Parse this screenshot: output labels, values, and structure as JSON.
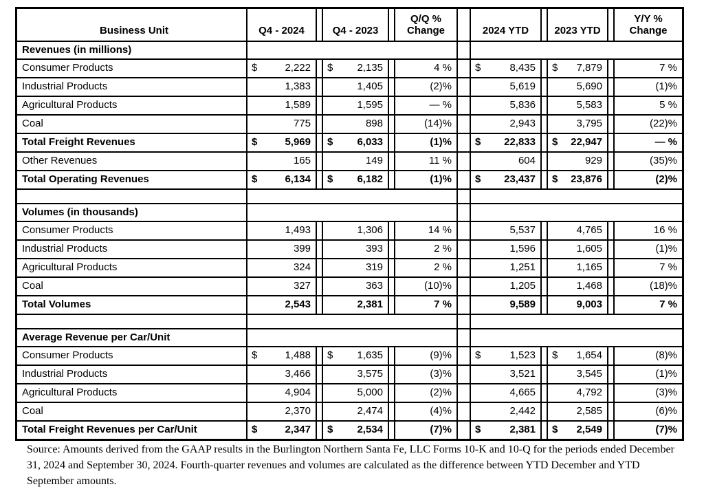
{
  "table": {
    "columns": [
      "Business Unit",
      "Q4 - 2024",
      "Q4 - 2023",
      "Q/Q %\nChange",
      "2024 YTD",
      "2023 YTD",
      "Y/Y %\nChange"
    ],
    "column_keys": [
      "q4-2024",
      "q4-2023",
      "qq-change",
      "ytd-2024",
      "ytd-2023",
      "yy-change"
    ],
    "sections": [
      {
        "title": "Revenues (in millions)",
        "rows": [
          {
            "label": "Consumer Products",
            "bold": false,
            "cells": [
              {
                "d": "$",
                "v": "2,222"
              },
              {
                "d": "$",
                "v": "2,135"
              },
              {
                "v": "4 %"
              },
              {
                "d": "$",
                "v": "8,435"
              },
              {
                "d": "$",
                "v": "7,879"
              },
              {
                "v": "7 %"
              }
            ]
          },
          {
            "label": "Industrial Products",
            "bold": false,
            "cells": [
              {
                "v": "1,383"
              },
              {
                "v": "1,405"
              },
              {
                "v": "(2)%"
              },
              {
                "v": "5,619"
              },
              {
                "v": "5,690"
              },
              {
                "v": "(1)%"
              }
            ]
          },
          {
            "label": "Agricultural Products",
            "bold": false,
            "cells": [
              {
                "v": "1,589"
              },
              {
                "v": "1,595"
              },
              {
                "v": "— %"
              },
              {
                "v": "5,836"
              },
              {
                "v": "5,583"
              },
              {
                "v": "5 %"
              }
            ]
          },
          {
            "label": "Coal",
            "bold": false,
            "cells": [
              {
                "v": "775"
              },
              {
                "v": "898"
              },
              {
                "v": "(14)%"
              },
              {
                "v": "2,943"
              },
              {
                "v": "3,795"
              },
              {
                "v": "(22)%"
              }
            ]
          },
          {
            "label": "Total Freight Revenues",
            "bold": true,
            "cells": [
              {
                "d": "$",
                "v": "5,969"
              },
              {
                "d": "$",
                "v": "6,033"
              },
              {
                "v": "(1)%"
              },
              {
                "d": "$",
                "v": "22,833"
              },
              {
                "d": "$",
                "v": "22,947"
              },
              {
                "v": "— %"
              }
            ]
          },
          {
            "label": "Other Revenues",
            "bold": false,
            "cells": [
              {
                "v": "165"
              },
              {
                "v": "149"
              },
              {
                "v": "11 %"
              },
              {
                "v": "604"
              },
              {
                "v": "929"
              },
              {
                "v": "(35)%"
              }
            ]
          },
          {
            "label": "Total Operating Revenues",
            "bold": true,
            "cells": [
              {
                "d": "$",
                "v": "6,134"
              },
              {
                "d": "$",
                "v": "6,182"
              },
              {
                "v": "(1)%"
              },
              {
                "d": "$",
                "v": "23,437"
              },
              {
                "d": "$",
                "v": "23,876"
              },
              {
                "v": "(2)%"
              }
            ]
          }
        ]
      },
      {
        "title": "Volumes (in thousands)",
        "rows": [
          {
            "label": "Consumer Products",
            "bold": false,
            "cells": [
              {
                "v": "1,493"
              },
              {
                "v": "1,306"
              },
              {
                "v": "14 %"
              },
              {
                "v": "5,537"
              },
              {
                "v": "4,765"
              },
              {
                "v": "16 %"
              }
            ]
          },
          {
            "label": "Industrial Products",
            "bold": false,
            "cells": [
              {
                "v": "399"
              },
              {
                "v": "393"
              },
              {
                "v": "2 %"
              },
              {
                "v": "1,596"
              },
              {
                "v": "1,605"
              },
              {
                "v": "(1)%"
              }
            ]
          },
          {
            "label": "Agricultural Products",
            "bold": false,
            "cells": [
              {
                "v": "324"
              },
              {
                "v": "319"
              },
              {
                "v": "2 %"
              },
              {
                "v": "1,251"
              },
              {
                "v": "1,165"
              },
              {
                "v": "7 %"
              }
            ]
          },
          {
            "label": "Coal",
            "bold": false,
            "cells": [
              {
                "v": "327"
              },
              {
                "v": "363"
              },
              {
                "v": "(10)%"
              },
              {
                "v": "1,205"
              },
              {
                "v": "1,468"
              },
              {
                "v": "(18)%"
              }
            ]
          },
          {
            "label": "Total Volumes",
            "bold": true,
            "cells": [
              {
                "v": "2,543"
              },
              {
                "v": "2,381"
              },
              {
                "v": "7 %"
              },
              {
                "v": "9,589"
              },
              {
                "v": "9,003"
              },
              {
                "v": "7 %"
              }
            ]
          }
        ]
      },
      {
        "title": "Average Revenue per Car/Unit",
        "rows": [
          {
            "label": "Consumer Products",
            "bold": false,
            "cells": [
              {
                "d": "$",
                "v": "1,488"
              },
              {
                "d": "$",
                "v": "1,635"
              },
              {
                "v": "(9)%"
              },
              {
                "d": "$",
                "v": "1,523"
              },
              {
                "d": "$",
                "v": "1,654"
              },
              {
                "v": "(8)%"
              }
            ]
          },
          {
            "label": "Industrial Products",
            "bold": false,
            "cells": [
              {
                "v": "3,466"
              },
              {
                "v": "3,575"
              },
              {
                "v": "(3)%"
              },
              {
                "v": "3,521"
              },
              {
                "v": "3,545"
              },
              {
                "v": "(1)%"
              }
            ]
          },
          {
            "label": "Agricultural Products",
            "bold": false,
            "cells": [
              {
                "v": "4,904"
              },
              {
                "v": "5,000"
              },
              {
                "v": "(2)%"
              },
              {
                "v": "4,665"
              },
              {
                "v": "4,792"
              },
              {
                "v": "(3)%"
              }
            ]
          },
          {
            "label": "Coal",
            "bold": false,
            "cells": [
              {
                "v": "2,370"
              },
              {
                "v": "2,474"
              },
              {
                "v": "(4)%"
              },
              {
                "v": "2,442"
              },
              {
                "v": "2,585"
              },
              {
                "v": "(6)%"
              }
            ]
          },
          {
            "label": "Total Freight Revenues per Car/Unit",
            "bold": true,
            "cells": [
              {
                "d": "$",
                "v": "2,347"
              },
              {
                "d": "$",
                "v": "2,534"
              },
              {
                "v": "(7)%"
              },
              {
                "d": "$",
                "v": "2,381"
              },
              {
                "d": "$",
                "v": "2,549"
              },
              {
                "v": "(7)%"
              }
            ]
          }
        ]
      }
    ]
  },
  "footer": {
    "source_text": "Source: Amounts derived from the GAAP results in the Burlington Northern Santa Fe, LLC Forms 10-K and 10-Q for the periods ended December 31, 2024 and September 30, 2024. Fourth-quarter revenues and volumes are calculated as the difference between YTD December and YTD September amounts."
  }
}
